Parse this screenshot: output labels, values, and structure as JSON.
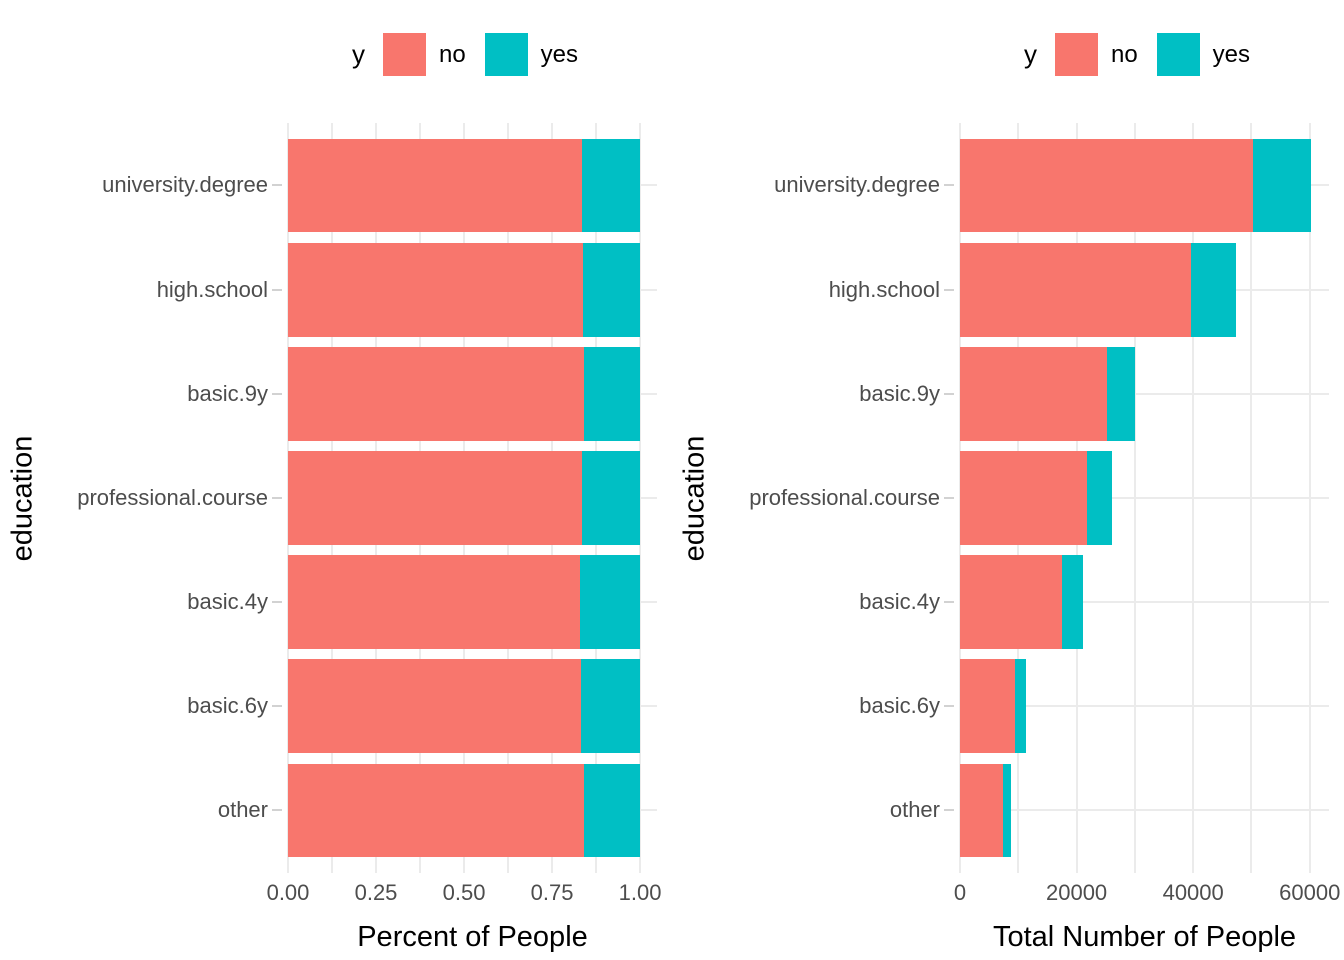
{
  "colors": {
    "no": "#F8766D",
    "yes": "#00BFC4",
    "grid": "#EBEBEB",
    "tick_mark": "#D2D2D2",
    "tick_label_text": "#4D4D4D",
    "axis_title_text": "#000000",
    "background": "#FFFFFF"
  },
  "legend": {
    "title": "y",
    "items": [
      {
        "label": "no",
        "color_key": "no"
      },
      {
        "label": "yes",
        "color_key": "yes"
      }
    ]
  },
  "chart_data": {
    "type": "bar",
    "orientation": "horizontal",
    "stacked": true,
    "grid": "on",
    "legend_position": "top-center",
    "categories": [
      "university.degree",
      "high.school",
      "basic.9y",
      "professional.course",
      "basic.4y",
      "basic.6y",
      "other"
    ],
    "charts": [
      {
        "id": "percent",
        "xlabel": "Percent of People",
        "ylabel": "education",
        "xlim": [
          0,
          1.0
        ],
        "x_panel_max": 1.048,
        "x_ticks": [
          {
            "value": 0,
            "label": "0.00"
          },
          {
            "value": 0.25,
            "label": "0.25"
          },
          {
            "value": 0.5,
            "label": "0.50"
          },
          {
            "value": 0.75,
            "label": "0.75"
          },
          {
            "value": 1.0,
            "label": "1.00"
          }
        ],
        "x_minor_ticks": [
          0.125,
          0.375,
          0.625,
          0.875
        ],
        "series": [
          {
            "name": "yes",
            "values": [
              0.166,
              0.163,
              0.16,
              0.165,
              0.171,
              0.168,
              0.158
            ]
          },
          {
            "name": "no",
            "values": [
              0.834,
              0.837,
              0.84,
              0.835,
              0.829,
              0.832,
              0.842
            ]
          }
        ]
      },
      {
        "id": "count",
        "xlabel": "Total Number of People",
        "ylabel": "education",
        "xlim": [
          0,
          60000
        ],
        "x_panel_max": 63300,
        "x_ticks": [
          {
            "value": 0,
            "label": "0"
          },
          {
            "value": 20000,
            "label": "20000"
          },
          {
            "value": 40000,
            "label": "40000"
          },
          {
            "value": 60000,
            "label": "60000"
          }
        ],
        "x_minor_ticks": [
          10000,
          30000,
          50000
        ],
        "series": [
          {
            "name": "yes",
            "values": [
              10000,
              7700,
              4800,
              4300,
              3600,
              1900,
              1400
            ]
          },
          {
            "name": "no",
            "values": [
              50200,
              39600,
              25200,
              21800,
              17500,
              9400,
              7300
            ]
          }
        ],
        "totals": [
          60200,
          47300,
          30000,
          26100,
          21100,
          11300,
          8700
        ]
      }
    ]
  }
}
